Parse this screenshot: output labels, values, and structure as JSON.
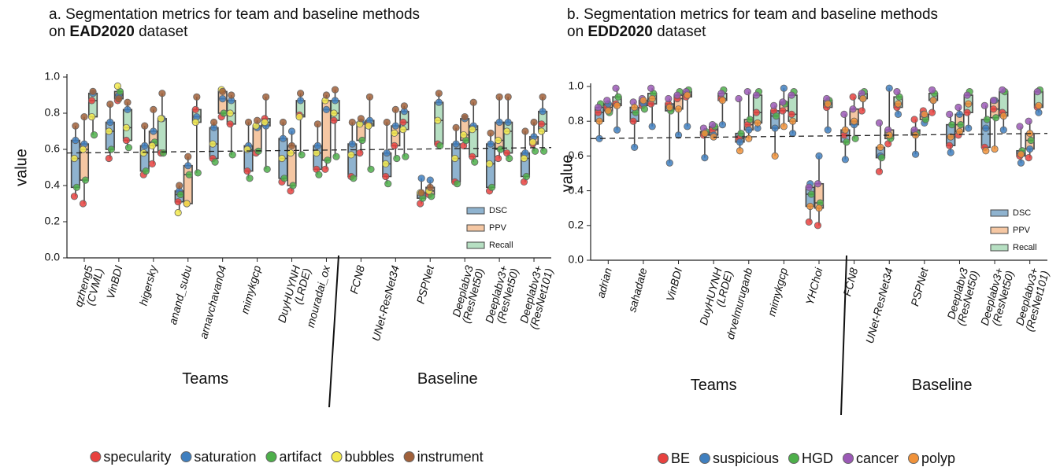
{
  "chart_data": [
    {
      "type": "box",
      "title": "a. Segmentation metrics for team and baseline methods",
      "title_prefix": "on",
      "dataset": "EAD2020",
      "title_suffix": "dataset",
      "y_label": "value",
      "groups": [
        {
          "label": "Teams",
          "count": 8
        },
        {
          "label": "Baseline",
          "count": 6
        }
      ],
      "categories": [
        [
          "qzheng5",
          "(CVML)"
        ],
        [
          "VinBDI"
        ],
        [
          "higersky"
        ],
        [
          "anand_subu"
        ],
        [
          "arnavchavan04"
        ],
        [
          "mimykgcp"
        ],
        [
          "DuyHUYNH",
          "(LRDE)"
        ],
        [
          "mouradai_ox"
        ],
        [
          "FCN8"
        ],
        [
          "UNet-ResNet34"
        ],
        [
          "PSPNet"
        ],
        [
          "Deeplabv3",
          "(ResNet50)"
        ],
        [
          "Deeplabv3+",
          "(ResNet50)"
        ],
        [
          "Deeplabv3+",
          "(ResNet101)"
        ]
      ],
      "classes": [
        {
          "name": "specularity",
          "color": "#e8423f"
        },
        {
          "name": "saturation",
          "color": "#3f7fbf"
        },
        {
          "name": "artifact",
          "color": "#4daf4a"
        },
        {
          "name": "bubbles",
          "color": "#f2e94e"
        },
        {
          "name": "instrument",
          "color": "#a0603a"
        }
      ],
      "series": [
        {
          "name": "DSC",
          "color": "#8fb3cf",
          "values": [
            [
              0.34,
              0.65,
              0.39,
              0.55,
              0.73
            ],
            [
              0.55,
              0.75,
              0.6,
              0.7,
              0.85
            ],
            [
              0.46,
              0.62,
              0.48,
              0.58,
              0.73
            ],
            [
              0.31,
              0.37,
              0.35,
              0.25,
              0.4
            ],
            [
              0.55,
              0.72,
              0.53,
              0.63,
              0.75
            ],
            [
              0.48,
              0.62,
              0.44,
              0.6,
              0.75
            ],
            [
              0.42,
              0.66,
              0.44,
              0.55,
              0.75
            ],
            [
              0.49,
              0.62,
              0.46,
              0.58,
              0.74
            ],
            [
              0.45,
              0.63,
              0.44,
              0.57,
              0.75
            ],
            [
              0.45,
              0.58,
              0.41,
              0.52,
              0.75
            ],
            [
              0.3,
              0.44,
              0.33,
              0.36,
              0.36
            ],
            [
              0.42,
              0.63,
              0.41,
              0.55,
              0.72
            ],
            [
              0.37,
              0.63,
              0.39,
              0.52,
              0.69
            ],
            [
              0.42,
              0.58,
              0.45,
              0.55,
              0.7
            ]
          ]
        },
        {
          "name": "PPV",
          "color": "#f5c7a3",
          "values": [
            [
              0.3,
              0.63,
              0.43,
              0.6,
              0.78
            ],
            [
              0.87,
              0.9,
              0.92,
              0.95,
              0.88
            ],
            [
              0.52,
              0.7,
              0.64,
              0.62,
              0.82
            ],
            [
              0.3,
              0.51,
              0.46,
              0.3,
              0.56
            ],
            [
              0.78,
              0.88,
              0.8,
              0.93,
              0.92
            ],
            [
              0.58,
              0.72,
              0.59,
              0.73,
              0.76
            ],
            [
              0.37,
              0.7,
              0.4,
              0.58,
              0.62
            ],
            [
              0.49,
              0.82,
              0.54,
              0.87,
              0.9
            ],
            [
              0.58,
              0.75,
              0.65,
              0.74,
              0.77
            ],
            [
              0.62,
              0.73,
              0.55,
              0.69,
              0.82
            ],
            [
              0.35,
              0.43,
              0.34,
              0.37,
              0.39
            ],
            [
              0.62,
              0.77,
              0.65,
              0.68,
              0.78
            ],
            [
              0.55,
              0.75,
              0.6,
              0.65,
              0.89
            ],
            [
              0.63,
              0.67,
              0.59,
              0.64,
              0.75
            ]
          ]
        },
        {
          "name": "Recall",
          "color": "#b6dfc2",
          "values": [
            [
              0.87,
              0.91,
              0.68,
              0.78,
              0.92
            ],
            [
              0.65,
              0.82,
              0.61,
              0.72,
              0.86
            ],
            [
              0.58,
              0.77,
              0.58,
              0.77,
              0.91
            ],
            [
              0.82,
              0.78,
              0.47,
              0.75,
              0.89
            ],
            [
              0.74,
              0.87,
              0.57,
              0.8,
              0.9
            ],
            [
              0.77,
              0.73,
              0.49,
              0.75,
              0.89
            ],
            [
              0.79,
              0.87,
              0.57,
              0.78,
              0.91
            ],
            [
              0.76,
              0.87,
              0.56,
              0.8,
              0.93
            ],
            [
              0.74,
              0.76,
              0.49,
              0.73,
              0.89
            ],
            [
              0.75,
              0.81,
              0.56,
              0.71,
              0.84
            ],
            [
              0.63,
              0.86,
              0.62,
              0.76,
              0.91
            ],
            [
              0.56,
              0.73,
              0.53,
              0.71,
              0.86
            ],
            [
              0.58,
              0.75,
              0.55,
              0.7,
              0.89
            ],
            [
              0.74,
              0.81,
              0.59,
              0.7,
              0.89
            ]
          ]
        }
      ],
      "reference_line": {
        "start": 0.58,
        "end": 0.61
      },
      "ylim": [
        0,
        1.0
      ],
      "yticks": [
        {
          "value": 0,
          "label": "0.0"
        },
        {
          "value": 0.2,
          "label": "0.2"
        },
        {
          "value": 0.4,
          "label": "0.4"
        },
        {
          "value": 0.6,
          "label": "0.6"
        },
        {
          "value": 0.8,
          "label": "0.8"
        },
        {
          "value": 1.0,
          "label": "1.0"
        }
      ],
      "legend": "lower right"
    },
    {
      "type": "box",
      "title": "b. Segmentation metrics for team and baseline methods",
      "title_prefix": "on",
      "dataset": "EDD2020",
      "title_suffix": "dataset",
      "y_label": "value",
      "groups": [
        {
          "label": "Teams",
          "count": 7
        },
        {
          "label": "Baseline",
          "count": 6
        }
      ],
      "categories": [
        [
          "adrian"
        ],
        [
          "sahadate"
        ],
        [
          "VinBDI"
        ],
        [
          "DuyHUYNH",
          "(LRDE)"
        ],
        [
          "drvelmuruganb"
        ],
        [
          "mimykgcp"
        ],
        [
          "YHChoi"
        ],
        [
          "FCN8"
        ],
        [
          "UNet-ResNet34"
        ],
        [
          "PSPNet"
        ],
        [
          "Deeplabv3",
          "(ResNet50)"
        ],
        [
          "Deeplabv3+",
          "(ResNet50)"
        ],
        [
          "Deeplabv3+",
          "(ResNet101)"
        ]
      ],
      "classes": [
        {
          "name": "BE",
          "color": "#e8423f"
        },
        {
          "name": "suspicious",
          "color": "#3f7fbf"
        },
        {
          "name": "HGD",
          "color": "#4daf4a"
        },
        {
          "name": "cancer",
          "color": "#9b59b6"
        },
        {
          "name": "polyp",
          "color": "#f0923a"
        }
      ],
      "series": [
        {
          "name": "DSC",
          "color": "#8fb3cf",
          "values": [
            [
              0.85,
              0.7,
              0.9,
              0.88,
              0.8
            ],
            [
              0.8,
              0.65,
              0.85,
              0.91,
              0.88
            ],
            [
              0.9,
              0.56,
              0.86,
              0.93,
              0.88
            ],
            [
              0.72,
              0.59,
              0.74,
              0.76,
              0.73
            ],
            [
              0.7,
              0.68,
              0.73,
              0.93,
              0.63
            ],
            [
              0.86,
              0.76,
              0.83,
              0.89,
              0.6
            ],
            [
              0.22,
              0.44,
              0.38,
              0.42,
              0.31
            ],
            [
              0.72,
              0.58,
              0.68,
              0.84,
              0.75
            ],
            [
              0.51,
              0.6,
              0.59,
              0.79,
              0.65
            ],
            [
              0.81,
              0.61,
              0.73,
              0.75,
              0.72
            ],
            [
              0.66,
              0.62,
              0.78,
              0.84,
              0.71
            ],
            [
              0.65,
              0.76,
              0.81,
              0.89,
              0.63
            ],
            [
              0.6,
              0.56,
              0.63,
              0.77,
              0.61
            ]
          ]
        },
        {
          "name": "PPV",
          "color": "#f5c7a3",
          "values": [
            [
              0.88,
              0.9,
              0.85,
              0.92,
              0.86
            ],
            [
              0.89,
              0.9,
              0.87,
              0.93,
              0.92
            ],
            [
              0.93,
              0.72,
              0.97,
              0.95,
              0.87
            ],
            [
              0.75,
              0.72,
              0.77,
              0.78,
              0.71
            ],
            [
              0.78,
              0.75,
              0.81,
              0.97,
              0.7
            ],
            [
              0.86,
              0.99,
              0.9,
              0.91,
              0.77
            ],
            [
              0.2,
              0.6,
              0.33,
              0.44,
              0.3
            ],
            [
              0.94,
              0.78,
              0.7,
              0.87,
              0.8
            ],
            [
              0.67,
              0.99,
              0.7,
              0.75,
              0.72
            ],
            [
              0.86,
              0.79,
              0.81,
              0.84,
              0.84
            ],
            [
              0.72,
              0.84,
              0.78,
              0.88,
              0.74
            ],
            [
              0.87,
              0.92,
              0.82,
              0.92,
              0.64
            ],
            [
              0.59,
              0.64,
              0.69,
              0.8,
              0.73
            ]
          ]
        },
        {
          "name": "Recall",
          "color": "#b6dfc2",
          "values": [
            [
              0.9,
              0.75,
              0.94,
              0.99,
              0.89
            ],
            [
              0.9,
              0.77,
              0.96,
              0.99,
              0.93
            ],
            [
              0.94,
              0.77,
              0.98,
              0.97,
              0.95
            ],
            [
              0.93,
              0.78,
              0.98,
              0.96,
              0.92
            ],
            [
              0.85,
              0.76,
              0.97,
              0.95,
              0.79
            ],
            [
              0.84,
              0.73,
              0.97,
              0.95,
              0.8
            ],
            [
              0.88,
              0.75,
              0.92,
              0.93,
              0.9
            ],
            [
              0.86,
              0.93,
              0.97,
              0.96,
              0.93
            ],
            [
              0.88,
              0.84,
              0.94,
              0.97,
              0.9
            ],
            [
              0.85,
              0.92,
              0.96,
              0.98,
              0.92
            ],
            [
              0.85,
              0.76,
              0.97,
              0.95,
              0.9
            ],
            [
              0.85,
              0.75,
              0.97,
              0.98,
              0.83
            ],
            [
              0.88,
              0.85,
              0.98,
              0.97,
              0.89
            ]
          ]
        }
      ],
      "reference_line": {
        "start": 0.7,
        "end": 0.73
      },
      "ylim": [
        0,
        1.0
      ],
      "yticks": [
        {
          "value": 0,
          "label": "0.0"
        },
        {
          "value": 0.2,
          "label": "0.2"
        },
        {
          "value": 0.4,
          "label": "0.4"
        },
        {
          "value": 0.6,
          "label": "0.6"
        },
        {
          "value": 0.8,
          "label": "0.8"
        },
        {
          "value": 1.0,
          "label": "1.0"
        }
      ],
      "legend": "lower right"
    }
  ]
}
